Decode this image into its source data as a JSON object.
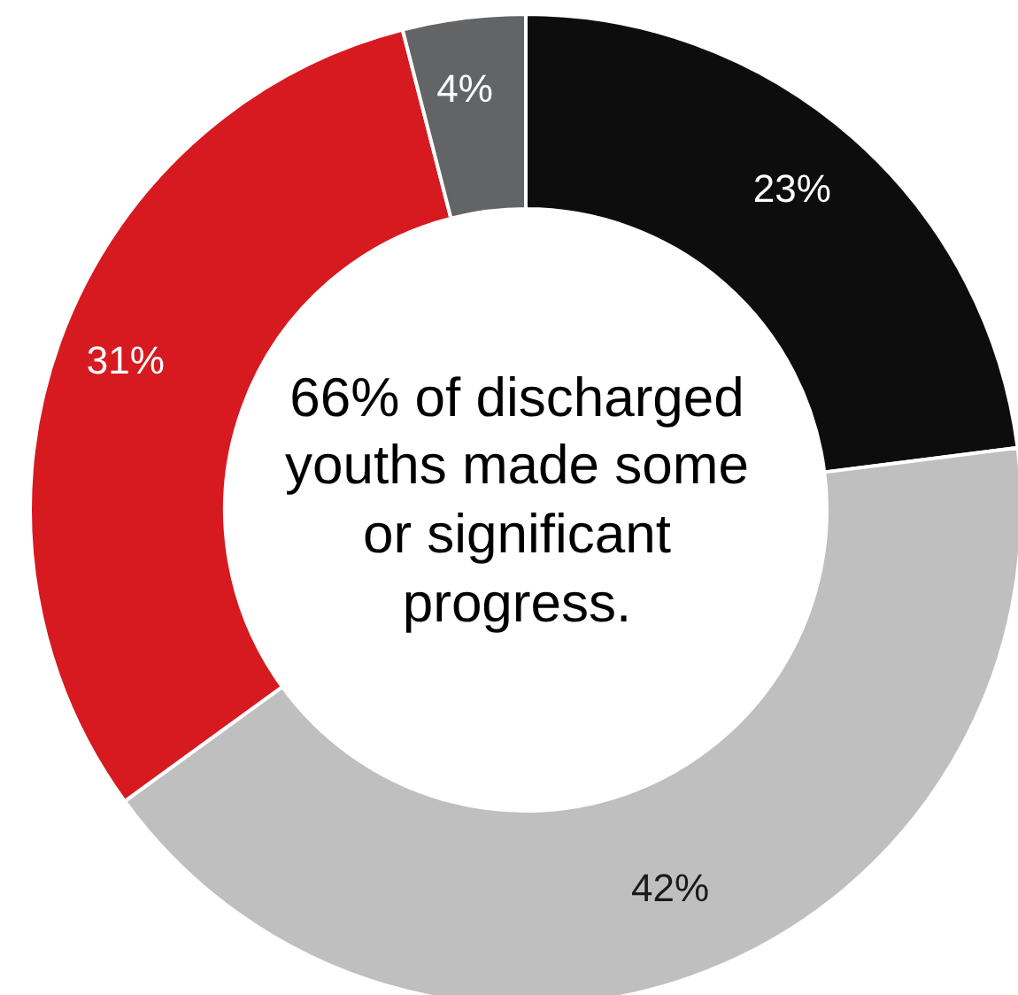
{
  "chart_data": {
    "type": "donut",
    "categories": [
      null,
      null,
      null,
      null
    ],
    "values": [
      23,
      42,
      31,
      4
    ],
    "colors": [
      "#0d0d0d",
      "#bfbfbf",
      "#d71920",
      "#636466"
    ],
    "value_labels": [
      "23%",
      "42%",
      "31%",
      "4%"
    ],
    "annotations": [
      "66% of discharged youths made some or significant progress."
    ]
  }
}
